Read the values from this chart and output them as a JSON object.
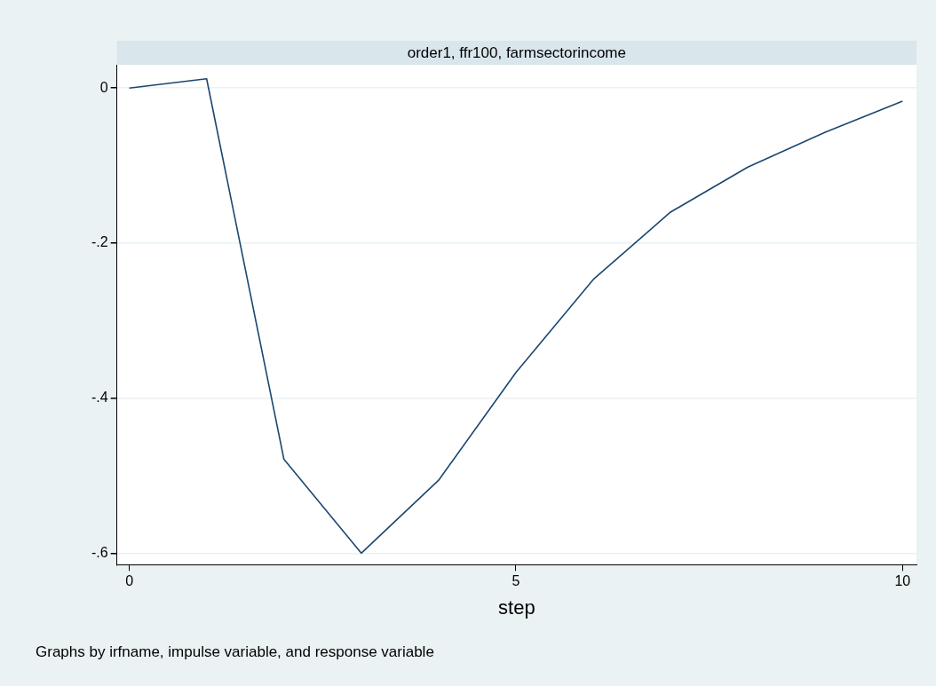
{
  "chart_data": {
    "type": "line",
    "title": "order1, ffr100, farmsectorincome",
    "xlabel": "step",
    "annotations": [
      "Graphs by irfname, impulse variable, and response variable"
    ],
    "x": [
      0,
      1,
      2,
      3,
      4,
      5,
      6,
      7,
      8,
      9,
      10
    ],
    "series": [
      {
        "color": "#1a476f",
        "values": [
          0,
          0.012,
          -0.479,
          -0.6,
          -0.506,
          -0.367,
          -0.247,
          -0.16,
          -0.102,
          -0.057,
          -0.017
        ]
      }
    ],
    "xlim": [
      -0.16,
      10.18
    ],
    "xticks": [
      0,
      5,
      10
    ],
    "ylim": [
      -0.615,
      0.03
    ],
    "yticks": [
      {
        "value": 0,
        "label": "0"
      },
      {
        "value": -0.2,
        "label": "-.2"
      },
      {
        "value": -0.4,
        "label": "-.4"
      },
      {
        "value": -0.6,
        "label": "-.6"
      }
    ],
    "grid": "y",
    "legend": false,
    "marker": "none",
    "line_style": "solid"
  }
}
